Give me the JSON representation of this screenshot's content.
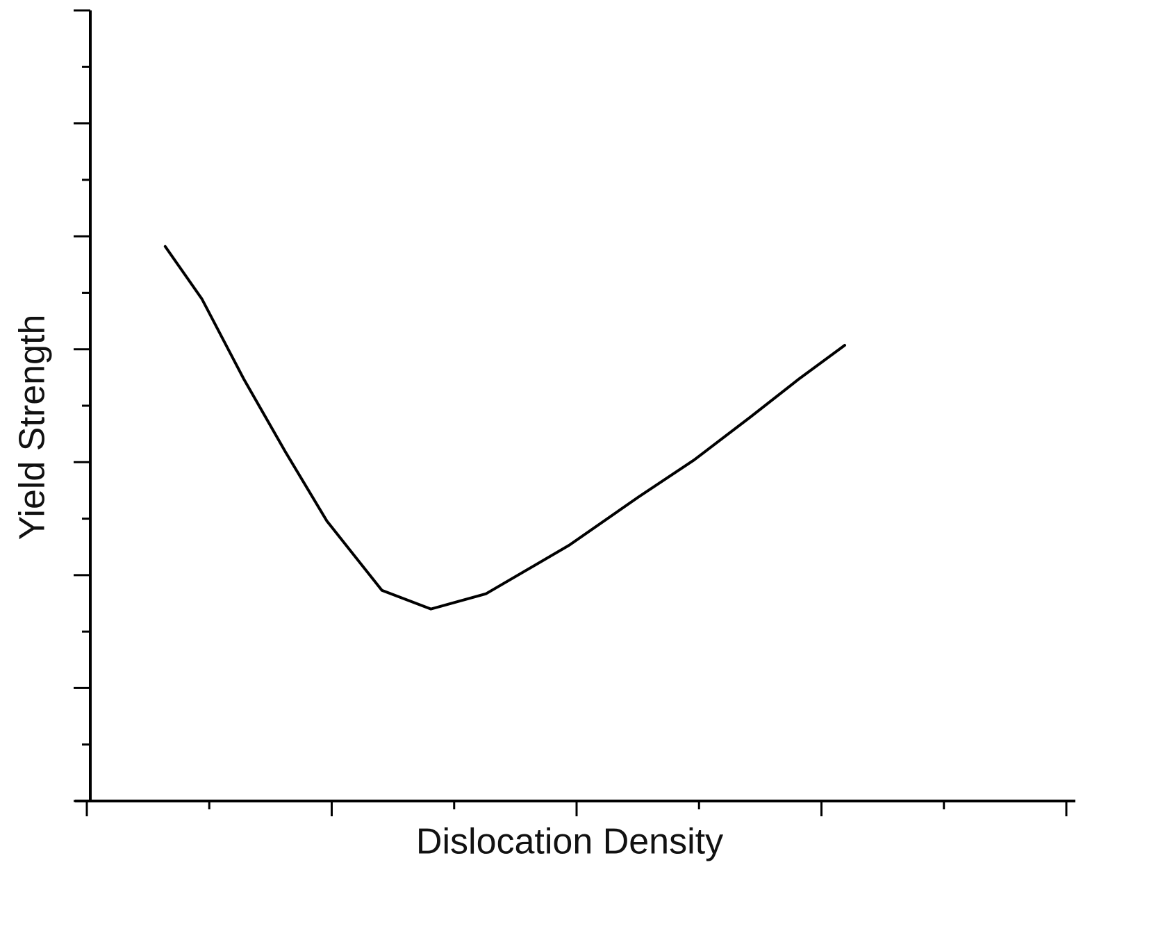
{
  "chart_data": {
    "type": "line",
    "xlabel": "Dislocation Density",
    "ylabel": "Yield Strength",
    "x": [
      0.64,
      0.94,
      1.28,
      1.62,
      1.96,
      2.41,
      2.81,
      3.26,
      3.94,
      4.51,
      4.96,
      5.42,
      5.82,
      6.19
    ],
    "series": [
      {
        "color": "#000000",
        "values": [
          9.82,
          8.89,
          7.48,
          6.19,
          4.96,
          3.73,
          3.4,
          3.67,
          4.53,
          5.39,
          6.04,
          6.8,
          7.48,
          8.07
        ]
      }
    ],
    "xlim": [
      0,
      8
    ],
    "xticks": [
      0,
      2,
      4,
      6,
      8
    ],
    "xminorticks": [
      1,
      3,
      5,
      7
    ],
    "ylim": [
      0,
      14
    ],
    "yticks": [
      0,
      2,
      4,
      6,
      8,
      10,
      12,
      14
    ],
    "yminorticks": [
      1,
      3,
      5,
      7,
      9,
      11,
      13
    ],
    "grid": false
  }
}
